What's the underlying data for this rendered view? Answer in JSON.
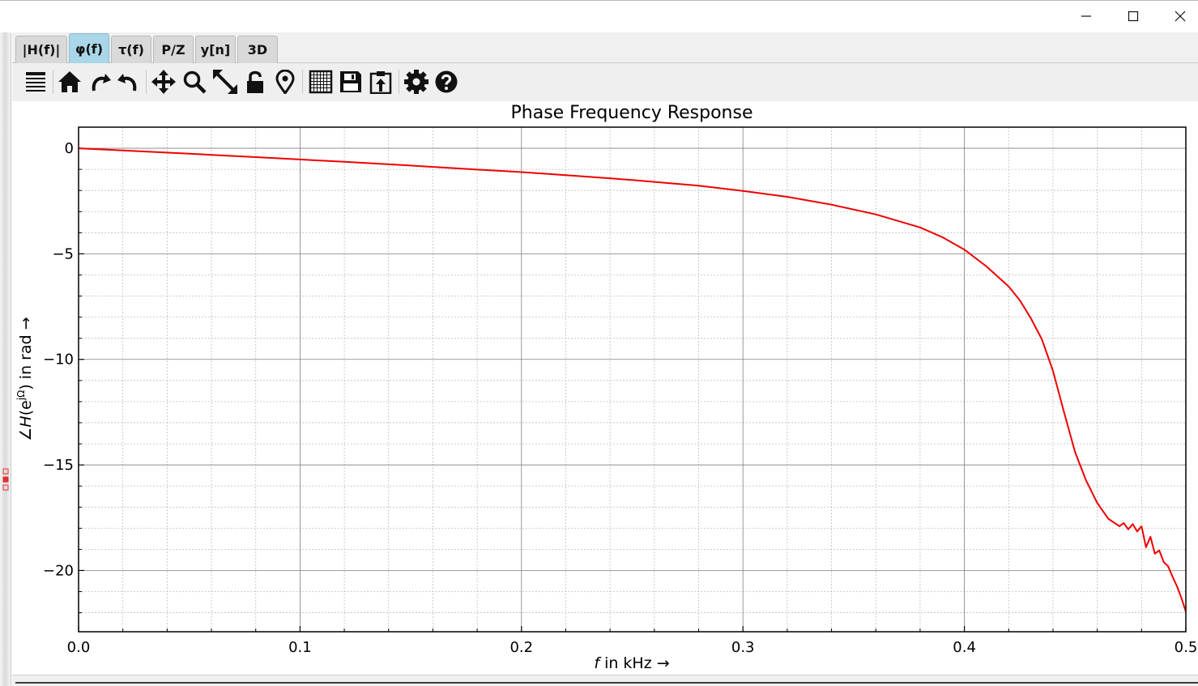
{
  "window": {
    "controls": [
      "minimize",
      "maximize",
      "close"
    ]
  },
  "tabs": [
    {
      "label": "|H(f)|",
      "active": false
    },
    {
      "label": "φ(f)",
      "active": true
    },
    {
      "label": "τ(f)",
      "active": false
    },
    {
      "label": "P/Z",
      "active": false
    },
    {
      "label": "y[n]",
      "active": false
    },
    {
      "label": "3D",
      "active": false
    }
  ],
  "toolbar": {
    "icons": [
      "list-icon",
      "home-icon",
      "undo-icon",
      "redo-icon",
      "pan-icon",
      "zoom-icon",
      "zoom-full-icon",
      "lock-icon",
      "marker-icon",
      "grid-icon",
      "save-icon",
      "clipboard-icon",
      "settings-icon",
      "help-icon"
    ]
  },
  "colors": {
    "accent_tab": "#a9d6e8",
    "curve": "#ee0000",
    "grid_major": "#7f7f7f",
    "grid_minor": "#bdbdbd"
  },
  "chart_data": {
    "type": "line",
    "title": "Phase Frequency Response",
    "xlabel_italic": "f",
    "xlabel_rest": " in kHz →",
    "ylabel_pre": "∠",
    "ylabel_italic": "H",
    "ylabel_mid": "(e",
    "ylabel_sup": "jΩ",
    "ylabel_post": ") in rad →",
    "xlim": [
      0.0,
      0.5
    ],
    "ylim": [
      -22.9,
      1.0
    ],
    "xticks": [
      0.0,
      0.1,
      0.2,
      0.3,
      0.4,
      0.5
    ],
    "xtick_labels": [
      "0.0",
      "0.1",
      "0.2",
      "0.3",
      "0.4",
      "0.5"
    ],
    "yticks": [
      0,
      -5,
      -10,
      -15,
      -20
    ],
    "ytick_labels": [
      "0",
      "−5",
      "−10",
      "−15",
      "−20"
    ],
    "grid": true,
    "series": [
      {
        "color": "#ee0000",
        "x": [
          0.0,
          0.02,
          0.05,
          0.08,
          0.1,
          0.12,
          0.15,
          0.18,
          0.2,
          0.22,
          0.25,
          0.28,
          0.3,
          0.32,
          0.34,
          0.36,
          0.38,
          0.39,
          0.4,
          0.41,
          0.42,
          0.425,
          0.43,
          0.435,
          0.44,
          0.445,
          0.45,
          0.455,
          0.46,
          0.465,
          0.47,
          0.472,
          0.474,
          0.476,
          0.478,
          0.48,
          0.482,
          0.484,
          0.486,
          0.488,
          0.49,
          0.492,
          0.494,
          0.496,
          0.498,
          0.5
        ],
        "y": [
          0.0,
          -0.1,
          -0.26,
          -0.42,
          -0.53,
          -0.64,
          -0.82,
          -1.01,
          -1.13,
          -1.27,
          -1.5,
          -1.77,
          -2.02,
          -2.3,
          -2.67,
          -3.13,
          -3.75,
          -4.21,
          -4.8,
          -5.6,
          -6.55,
          -7.2,
          -8.05,
          -9.05,
          -10.55,
          -12.5,
          -14.4,
          -15.75,
          -16.8,
          -17.55,
          -17.9,
          -17.75,
          -18.05,
          -17.8,
          -18.15,
          -17.9,
          -18.9,
          -18.4,
          -19.2,
          -19.05,
          -19.6,
          -19.8,
          -20.3,
          -20.75,
          -21.3,
          -21.95
        ]
      }
    ]
  }
}
